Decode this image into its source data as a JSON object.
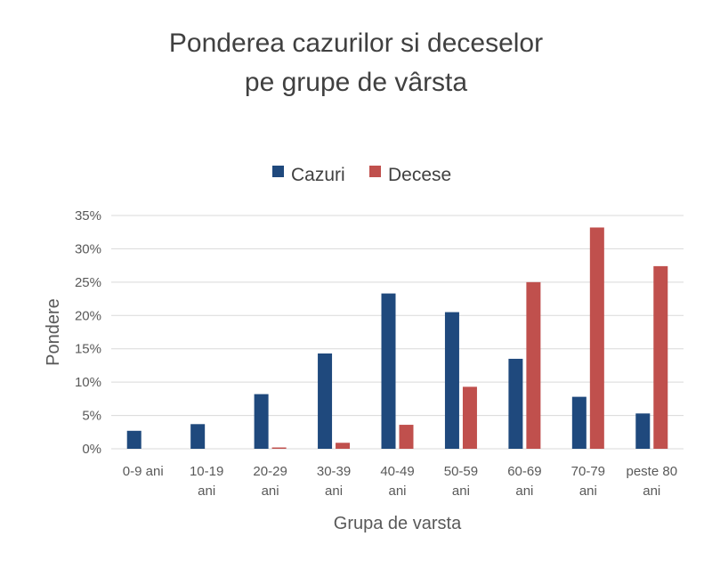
{
  "chart_data": {
    "type": "bar",
    "title": [
      "Ponderea cazurilor si deceselor",
      "pe grupe de vârsta"
    ],
    "xlabel": "Grupa de varsta",
    "ylabel": "Pondere",
    "ylim": [
      0,
      35
    ],
    "yticks": [
      0,
      5,
      10,
      15,
      20,
      25,
      30,
      35
    ],
    "ytick_labels": [
      "0%",
      "5%",
      "10%",
      "15%",
      "20%",
      "25%",
      "30%",
      "35%"
    ],
    "grid": true,
    "legend_position": "top",
    "categories": [
      [
        "0-9 ani"
      ],
      [
        "10-19",
        "ani"
      ],
      [
        "20-29",
        "ani"
      ],
      [
        "30-39",
        "ani"
      ],
      [
        "40-49",
        "ani"
      ],
      [
        "50-59",
        "ani"
      ],
      [
        "60-69",
        "ani"
      ],
      [
        "70-79",
        "ani"
      ],
      [
        "peste 80",
        "ani"
      ]
    ],
    "series": [
      {
        "name": "Cazuri",
        "color": "#1f497d",
        "values": [
          2.7,
          3.7,
          8.2,
          14.3,
          23.3,
          20.5,
          13.5,
          7.8,
          5.3
        ]
      },
      {
        "name": "Decese",
        "color": "#c0504d",
        "values": [
          0,
          0,
          0.2,
          0.9,
          3.6,
          9.3,
          25.0,
          33.2,
          27.4
        ]
      }
    ]
  }
}
